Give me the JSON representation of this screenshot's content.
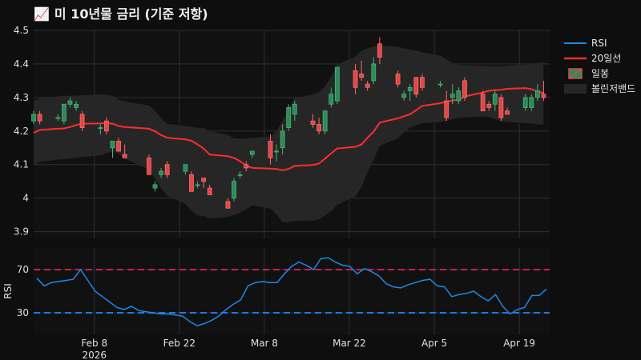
{
  "title_icon": "📈",
  "title": "미 10년물 금리 (기준 저항)",
  "colors": {
    "bg": "#0e0e0e",
    "plot_bg": "#111111",
    "grid": "#2c2f36",
    "rsi": "#1e88e5",
    "ma": "#ff2d2d",
    "up": "#2e8b57",
    "down": "#e04848",
    "band": "#262626",
    "level_high": "#c81e50",
    "level_low": "#1e78dc"
  },
  "chart_data": [
    {
      "type": "candlestick",
      "ylim": [
        3.88,
        4.5
      ],
      "yticks": [
        3.9,
        4,
        4.1,
        4.2,
        4.3,
        4.4,
        4.5
      ],
      "grid": true,
      "legend_position": "right",
      "legend": [
        "RSI",
        "20일선",
        "일봉",
        "볼린저밴드"
      ],
      "x_dates": [
        "2026-01-29",
        "2026-01-30",
        "2026-02-02",
        "2026-02-03",
        "2026-02-04",
        "2026-02-05",
        "2026-02-06",
        "2026-02-09",
        "2026-02-10",
        "2026-02-11",
        "2026-02-12",
        "2026-02-13",
        "2026-02-17",
        "2026-02-18",
        "2026-02-19",
        "2026-02-20",
        "2026-02-23",
        "2026-02-24",
        "2026-02-25",
        "2026-02-26",
        "2026-02-27",
        "2026-03-02",
        "2026-03-03",
        "2026-03-04",
        "2026-03-05",
        "2026-03-06",
        "2026-03-09",
        "2026-03-10",
        "2026-03-11",
        "2026-03-12",
        "2026-03-13",
        "2026-03-16",
        "2026-03-17",
        "2026-03-18",
        "2026-03-19",
        "2026-03-20",
        "2026-03-23",
        "2026-03-24",
        "2026-03-25",
        "2026-03-26",
        "2026-03-27",
        "2026-03-30",
        "2026-03-31",
        "2026-04-01",
        "2026-04-02",
        "2026-04-03",
        "2026-04-06",
        "2026-04-07",
        "2026-04-08",
        "2026-04-09",
        "2026-04-10",
        "2026-04-13",
        "2026-04-14",
        "2026-04-15",
        "2026-04-16",
        "2026-04-17",
        "2026-04-20",
        "2026-04-21",
        "2026-04-22",
        "2026-04-23"
      ],
      "ohlc": [
        [
          4.23,
          4.26,
          4.22,
          4.25
        ],
        [
          4.25,
          4.26,
          4.22,
          4.23
        ],
        [
          4.24,
          4.25,
          4.23,
          4.24
        ],
        [
          4.23,
          4.28,
          4.22,
          4.28
        ],
        [
          4.28,
          4.3,
          4.27,
          4.29
        ],
        [
          4.27,
          4.29,
          4.26,
          4.28
        ],
        [
          4.25,
          4.26,
          4.2,
          4.21
        ],
        [
          4.21,
          4.22,
          4.19,
          4.21
        ],
        [
          4.23,
          4.24,
          4.19,
          4.2
        ],
        [
          4.15,
          4.17,
          4.12,
          4.17
        ],
        [
          4.17,
          4.18,
          4.14,
          4.14
        ],
        [
          4.13,
          4.16,
          4.12,
          4.12
        ],
        [
          4.12,
          4.13,
          4.07,
          4.07
        ],
        [
          4.03,
          4.05,
          4.02,
          4.04
        ],
        [
          4.07,
          4.09,
          4.06,
          4.08
        ],
        [
          4.1,
          4.11,
          4.06,
          4.07
        ],
        [
          4.08,
          4.1,
          4.07,
          4.1
        ],
        [
          4.07,
          4.08,
          4.02,
          4.02
        ],
        [
          4.04,
          4.05,
          4.03,
          4.04
        ],
        [
          4.06,
          4.06,
          4.03,
          4.05
        ],
        [
          4.03,
          4.04,
          4.01,
          4.01
        ],
        [
          3.99,
          4.0,
          3.97,
          3.97
        ],
        [
          4.0,
          4.06,
          3.99,
          4.05
        ],
        [
          4.07,
          4.08,
          4.06,
          4.07
        ],
        [
          4.1,
          4.11,
          4.08,
          4.09
        ],
        [
          4.13,
          4.14,
          4.12,
          4.14
        ],
        [
          4.17,
          4.19,
          4.1,
          4.12
        ],
        [
          4.14,
          4.16,
          4.11,
          4.14
        ],
        [
          4.15,
          4.22,
          4.13,
          4.2
        ],
        [
          4.21,
          4.28,
          4.2,
          4.27
        ],
        [
          4.25,
          4.29,
          4.23,
          4.28
        ],
        [
          4.23,
          4.25,
          4.21,
          4.22
        ],
        [
          4.22,
          4.24,
          4.19,
          4.2
        ],
        [
          4.2,
          4.26,
          4.19,
          4.26
        ],
        [
          4.28,
          4.33,
          4.27,
          4.31
        ],
        [
          4.29,
          4.39,
          4.28,
          4.39
        ],
        [
          4.38,
          4.4,
          4.31,
          4.33
        ],
        [
          4.37,
          4.41,
          4.35,
          4.36
        ],
        [
          4.34,
          4.35,
          4.32,
          4.33
        ],
        [
          4.35,
          4.42,
          4.34,
          4.4
        ],
        [
          4.46,
          4.48,
          4.4,
          4.42
        ],
        [
          4.37,
          4.38,
          4.33,
          4.34
        ],
        [
          4.3,
          4.32,
          4.29,
          4.31
        ],
        [
          4.32,
          4.34,
          4.29,
          4.33
        ],
        [
          4.36,
          4.36,
          4.3,
          4.31
        ],
        [
          4.36,
          4.37,
          4.32,
          4.33
        ],
        [
          4.34,
          4.35,
          4.33,
          4.34
        ],
        [
          4.29,
          4.32,
          4.23,
          4.24
        ],
        [
          4.3,
          4.34,
          4.28,
          4.31
        ],
        [
          4.29,
          4.33,
          4.28,
          4.32
        ],
        [
          4.35,
          4.36,
          4.29,
          4.3
        ],
        [
          4.31,
          4.32,
          4.26,
          4.26
        ],
        [
          4.28,
          4.29,
          4.26,
          4.27
        ],
        [
          4.28,
          4.32,
          4.26,
          4.31
        ],
        [
          4.3,
          4.31,
          4.23,
          4.24
        ],
        [
          4.26,
          4.27,
          4.25,
          4.25
        ],
        [
          4.27,
          4.31,
          4.26,
          4.3
        ],
        [
          4.27,
          4.31,
          4.26,
          4.3
        ],
        [
          4.3,
          4.34,
          4.29,
          4.32
        ],
        [
          4.31,
          4.35,
          4.29,
          4.3
        ]
      ],
      "ma20": [
        4.195,
        4.203,
        4.207,
        4.208,
        4.212,
        4.218,
        4.222,
        4.223,
        4.224,
        4.222,
        4.215,
        4.212,
        4.207,
        4.199,
        4.188,
        4.18,
        4.175,
        4.171,
        4.16,
        4.148,
        4.13,
        4.125,
        4.12,
        4.11,
        4.097,
        4.09,
        4.088,
        4.087,
        4.083,
        4.087,
        4.096,
        4.099,
        4.103,
        4.118,
        4.133,
        4.148,
        4.153,
        4.16,
        4.18,
        4.198,
        4.225,
        4.238,
        4.244,
        4.25,
        4.262,
        4.275,
        4.283,
        4.288,
        4.291,
        4.293,
        4.303,
        4.315,
        4.32,
        4.322,
        4.323,
        4.326,
        4.328,
        4.325,
        4.318,
        4.313
      ],
      "bb_upper": [
        4.29,
        4.298,
        4.303,
        4.305,
        4.305,
        4.305,
        4.307,
        4.309,
        4.309,
        4.305,
        4.293,
        4.288,
        4.276,
        4.261,
        4.238,
        4.222,
        4.215,
        4.212,
        4.209,
        4.209,
        4.2,
        4.188,
        4.178,
        4.177,
        4.178,
        4.18,
        4.183,
        4.2,
        4.231,
        4.265,
        4.298,
        4.309,
        4.316,
        4.333,
        4.361,
        4.399,
        4.422,
        4.439,
        4.447,
        4.452,
        4.455,
        4.451,
        4.447,
        4.443,
        4.44,
        4.435,
        4.425,
        4.413,
        4.403,
        4.398,
        4.396,
        4.395,
        4.394,
        4.393,
        4.392,
        4.395,
        4.398,
        4.401,
        4.403,
        4.405
      ],
      "bb_lower": [
        4.1,
        4.108,
        4.115,
        4.116,
        4.118,
        4.12,
        4.122,
        4.127,
        4.134,
        4.139,
        4.132,
        4.118,
        4.086,
        4.058,
        4.03,
        4.007,
        3.983,
        3.962,
        3.949,
        3.947,
        3.939,
        3.944,
        3.95,
        3.957,
        3.966,
        3.978,
        3.969,
        3.951,
        3.929,
        3.929,
        3.932,
        3.933,
        3.937,
        3.948,
        3.962,
        3.98,
        4.006,
        4.034,
        4.076,
        4.114,
        4.156,
        4.178,
        4.196,
        4.21,
        4.217,
        4.223,
        4.227,
        4.23,
        4.235,
        4.239,
        4.241,
        4.243,
        4.242,
        4.236,
        4.23,
        4.227,
        4.224,
        4.222,
        4.22,
        4.219
      ]
    },
    {
      "type": "line",
      "ylabel": "RSI",
      "ylim": [
        10,
        90
      ],
      "yticks": [
        30,
        70
      ],
      "levels": [
        70,
        30
      ],
      "grid": true,
      "values": [
        62,
        55,
        58,
        59,
        60,
        63,
        70,
        60,
        50,
        45,
        40,
        35,
        33,
        36,
        32,
        31,
        30,
        29,
        29,
        28,
        27,
        22,
        18,
        20,
        23,
        27,
        33,
        38,
        42,
        55,
        60,
        63,
        62,
        58,
        66,
        72,
        77,
        74,
        70,
        80,
        81,
        77,
        74,
        70,
        65,
        70,
        68,
        65,
        60,
        57,
        55,
        57,
        58,
        60,
        57,
        55,
        45,
        47,
        48,
        45
      ],
      "rsi_full": [
        62,
        55,
        58,
        59,
        60,
        61,
        70,
        60,
        50,
        45,
        40,
        35,
        33,
        36,
        32,
        31,
        30,
        29,
        29,
        28,
        27,
        22,
        18,
        20,
        23,
        27,
        33,
        38,
        42,
        55,
        58,
        59,
        58,
        58,
        66,
        73,
        77,
        74,
        70,
        80,
        81,
        77,
        74,
        73,
        66,
        71,
        68,
        64,
        57,
        54,
        53,
        56,
        58,
        60,
        61,
        55,
        54,
        45,
        47,
        48,
        50,
        45,
        41,
        47,
        36,
        29,
        33,
        35,
        46,
        46,
        52
      ]
    }
  ],
  "x_axis": {
    "tick_labels": [
      "Feb 8",
      "Feb 22",
      "Mar 8",
      "Mar 22",
      "Apr 5",
      "Apr 19"
    ],
    "tick_dates": [
      "2026-02-08",
      "2026-02-22",
      "2026-03-08",
      "2026-03-22",
      "2026-04-05",
      "2026-04-19"
    ],
    "year_label": "2026"
  }
}
